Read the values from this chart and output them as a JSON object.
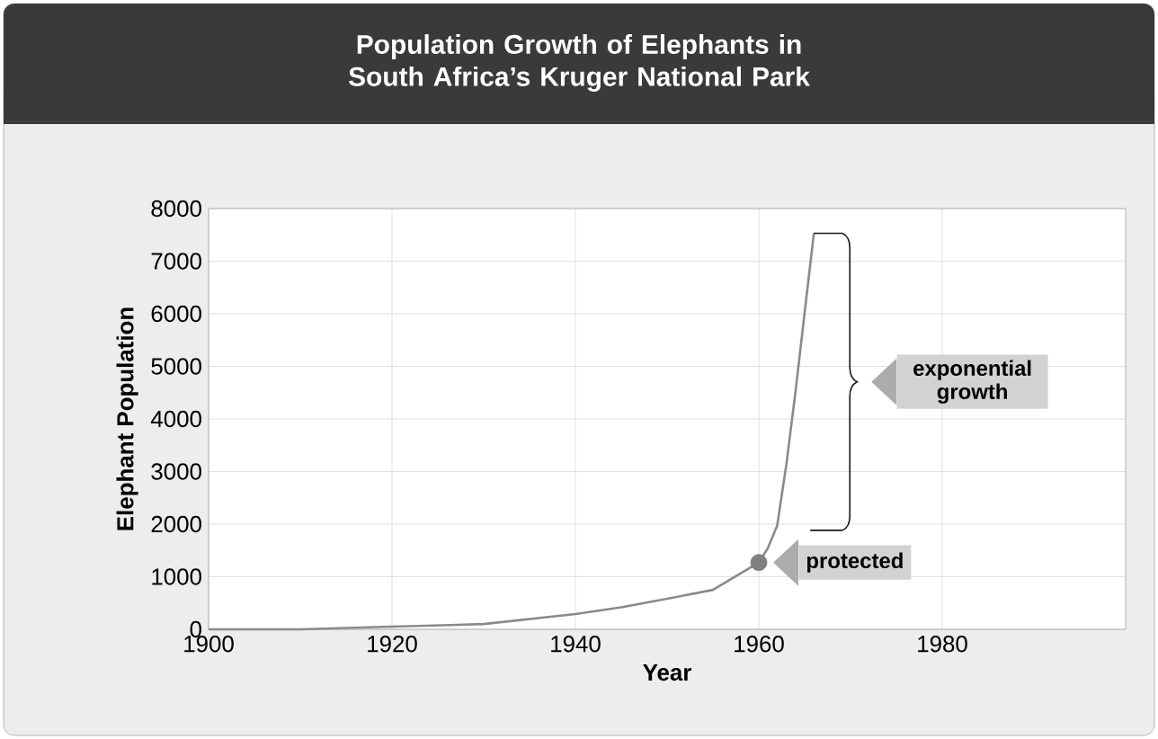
{
  "chart_data": {
    "type": "line",
    "title": "Population Growth of Elephants in South Africa’s Kruger National Park",
    "xlabel": "Year",
    "ylabel": "Elephant Population",
    "xlim": [
      1900,
      2000
    ],
    "xticks": [
      1900,
      1920,
      1940,
      1960,
      1980
    ],
    "ylim": [
      0,
      8000
    ],
    "yticks": [
      0,
      1000,
      2000,
      3000,
      4000,
      5000,
      6000,
      7000,
      8000
    ],
    "grid": true,
    "series": [
      {
        "color": "#8a8a8a",
        "x": [
          1900,
          1910,
          1920,
          1930,
          1940,
          1945,
          1950,
          1955,
          1960,
          1961,
          1962,
          1963,
          1964,
          1965,
          1966
        ],
        "values": [
          0,
          0,
          50,
          100,
          290,
          420,
          580,
          750,
          1270,
          1550,
          1970,
          3130,
          4520,
          6030,
          7530
        ]
      },
      {
        "type": "scatter",
        "color": "#808080",
        "x": [
          1960
        ],
        "values": [
          1270
        ]
      }
    ],
    "annotations": [
      "exponential growth",
      {
        "text": "protected",
        "x": 1960,
        "y": 1270
      }
    ]
  }
}
